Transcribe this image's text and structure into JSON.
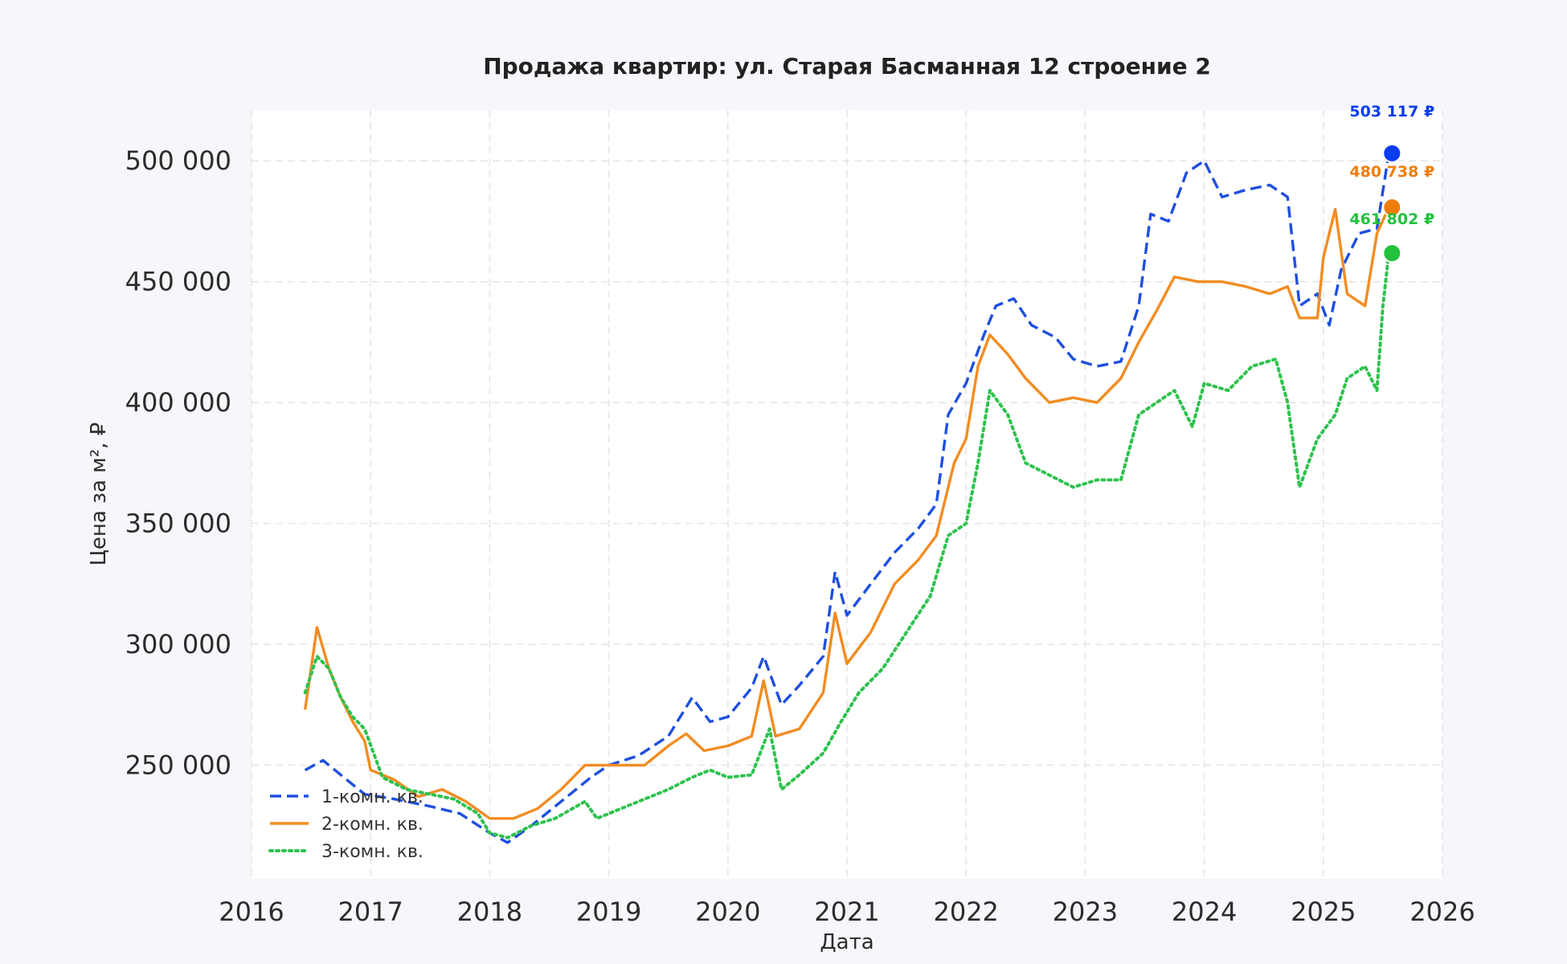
{
  "chart_data": {
    "type": "line",
    "title": "Продажа квартир: ул. Старая Басманная 12 строение 2",
    "xlabel": "Дата",
    "ylabel": "Цена за м², ₽",
    "xlim": [
      2016,
      2026
    ],
    "ylim": [
      203000,
      521000
    ],
    "x_ticks": [
      "2016",
      "2017",
      "2018",
      "2019",
      "2020",
      "2021",
      "2022",
      "2023",
      "2024",
      "2025",
      "2026"
    ],
    "y_ticks": [
      "250 000",
      "300 000",
      "350 000",
      "400 000",
      "450 000",
      "500 000"
    ],
    "grid": true,
    "legend_position": "lower-left",
    "series": [
      {
        "name": "1-комн. кв.",
        "color": "#1f4fe0",
        "style": "dashed",
        "end_label": "503 117 ₽",
        "end_marker_color": "#0a3cf0",
        "points": [
          [
            2016.45,
            248000
          ],
          [
            2016.6,
            252000
          ],
          [
            2016.75,
            246000
          ],
          [
            2016.95,
            238000
          ],
          [
            2017.2,
            236000
          ],
          [
            2017.5,
            233000
          ],
          [
            2017.75,
            230000
          ],
          [
            2018.0,
            222000
          ],
          [
            2018.15,
            218000
          ],
          [
            2018.35,
            225000
          ],
          [
            2018.6,
            235000
          ],
          [
            2018.85,
            245000
          ],
          [
            2019.0,
            250000
          ],
          [
            2019.25,
            254000
          ],
          [
            2019.5,
            262000
          ],
          [
            2019.7,
            278000
          ],
          [
            2019.85,
            268000
          ],
          [
            2020.0,
            270000
          ],
          [
            2020.2,
            282000
          ],
          [
            2020.3,
            295000
          ],
          [
            2020.45,
            275000
          ],
          [
            2020.6,
            283000
          ],
          [
            2020.8,
            295000
          ],
          [
            2020.9,
            330000
          ],
          [
            2021.0,
            312000
          ],
          [
            2021.2,
            325000
          ],
          [
            2021.4,
            338000
          ],
          [
            2021.6,
            348000
          ],
          [
            2021.75,
            358000
          ],
          [
            2021.85,
            395000
          ],
          [
            2022.0,
            408000
          ],
          [
            2022.15,
            428000
          ],
          [
            2022.25,
            440000
          ],
          [
            2022.4,
            443000
          ],
          [
            2022.55,
            432000
          ],
          [
            2022.75,
            427000
          ],
          [
            2022.9,
            418000
          ],
          [
            2023.1,
            415000
          ],
          [
            2023.3,
            417000
          ],
          [
            2023.45,
            440000
          ],
          [
            2023.55,
            478000
          ],
          [
            2023.7,
            475000
          ],
          [
            2023.85,
            495000
          ],
          [
            2024.0,
            500000
          ],
          [
            2024.15,
            485000
          ],
          [
            2024.35,
            488000
          ],
          [
            2024.55,
            490000
          ],
          [
            2024.7,
            485000
          ],
          [
            2024.8,
            440000
          ],
          [
            2024.95,
            445000
          ],
          [
            2025.05,
            432000
          ],
          [
            2025.15,
            455000
          ],
          [
            2025.3,
            470000
          ],
          [
            2025.45,
            472000
          ],
          [
            2025.55,
            503117
          ]
        ]
      },
      {
        "name": "2-комн. кв.",
        "color": "#f28c22",
        "style": "solid",
        "end_label": "480 738 ₽",
        "end_marker_color": "#f07d0a",
        "points": [
          [
            2016.45,
            273000
          ],
          [
            2016.5,
            290000
          ],
          [
            2016.55,
            307000
          ],
          [
            2016.65,
            290000
          ],
          [
            2016.75,
            278000
          ],
          [
            2016.85,
            268000
          ],
          [
            2016.95,
            260000
          ],
          [
            2017.0,
            248000
          ],
          [
            2017.2,
            244000
          ],
          [
            2017.4,
            237000
          ],
          [
            2017.6,
            240000
          ],
          [
            2017.8,
            235000
          ],
          [
            2018.0,
            228000
          ],
          [
            2018.2,
            228000
          ],
          [
            2018.4,
            232000
          ],
          [
            2018.6,
            240000
          ],
          [
            2018.8,
            250000
          ],
          [
            2019.0,
            250000
          ],
          [
            2019.3,
            250000
          ],
          [
            2019.5,
            258000
          ],
          [
            2019.65,
            263000
          ],
          [
            2019.8,
            256000
          ],
          [
            2020.0,
            258000
          ],
          [
            2020.2,
            262000
          ],
          [
            2020.3,
            285000
          ],
          [
            2020.4,
            262000
          ],
          [
            2020.6,
            265000
          ],
          [
            2020.8,
            280000
          ],
          [
            2020.9,
            313000
          ],
          [
            2021.0,
            292000
          ],
          [
            2021.2,
            305000
          ],
          [
            2021.4,
            325000
          ],
          [
            2021.6,
            335000
          ],
          [
            2021.75,
            345000
          ],
          [
            2021.9,
            375000
          ],
          [
            2022.0,
            385000
          ],
          [
            2022.1,
            415000
          ],
          [
            2022.2,
            428000
          ],
          [
            2022.35,
            420000
          ],
          [
            2022.5,
            410000
          ],
          [
            2022.7,
            400000
          ],
          [
            2022.9,
            402000
          ],
          [
            2023.1,
            400000
          ],
          [
            2023.3,
            410000
          ],
          [
            2023.45,
            425000
          ],
          [
            2023.6,
            438000
          ],
          [
            2023.75,
            452000
          ],
          [
            2023.95,
            450000
          ],
          [
            2024.15,
            450000
          ],
          [
            2024.35,
            448000
          ],
          [
            2024.55,
            445000
          ],
          [
            2024.7,
            448000
          ],
          [
            2024.8,
            435000
          ],
          [
            2024.95,
            435000
          ],
          [
            2025.0,
            460000
          ],
          [
            2025.1,
            480000
          ],
          [
            2025.2,
            445000
          ],
          [
            2025.35,
            440000
          ],
          [
            2025.45,
            470000
          ],
          [
            2025.55,
            480738
          ]
        ]
      },
      {
        "name": "3-комн. кв.",
        "color": "#2ec24e",
        "style": "dotted",
        "end_label": "461 802 ₽",
        "end_marker_color": "#22c23c",
        "points": [
          [
            2016.45,
            280000
          ],
          [
            2016.55,
            295000
          ],
          [
            2016.65,
            290000
          ],
          [
            2016.75,
            278000
          ],
          [
            2016.85,
            270000
          ],
          [
            2016.95,
            265000
          ],
          [
            2017.1,
            245000
          ],
          [
            2017.3,
            240000
          ],
          [
            2017.5,
            238000
          ],
          [
            2017.7,
            236000
          ],
          [
            2017.9,
            230000
          ],
          [
            2018.0,
            222000
          ],
          [
            2018.15,
            220000
          ],
          [
            2018.35,
            225000
          ],
          [
            2018.55,
            228000
          ],
          [
            2018.8,
            235000
          ],
          [
            2018.9,
            228000
          ],
          [
            2019.1,
            232000
          ],
          [
            2019.3,
            236000
          ],
          [
            2019.5,
            240000
          ],
          [
            2019.7,
            245000
          ],
          [
            2019.85,
            248000
          ],
          [
            2020.0,
            245000
          ],
          [
            2020.2,
            246000
          ],
          [
            2020.35,
            265000
          ],
          [
            2020.45,
            240000
          ],
          [
            2020.6,
            246000
          ],
          [
            2020.8,
            255000
          ],
          [
            2020.95,
            268000
          ],
          [
            2021.1,
            280000
          ],
          [
            2021.3,
            290000
          ],
          [
            2021.5,
            305000
          ],
          [
            2021.7,
            320000
          ],
          [
            2021.85,
            345000
          ],
          [
            2022.0,
            350000
          ],
          [
            2022.1,
            375000
          ],
          [
            2022.2,
            405000
          ],
          [
            2022.35,
            395000
          ],
          [
            2022.5,
            375000
          ],
          [
            2022.7,
            370000
          ],
          [
            2022.9,
            365000
          ],
          [
            2023.1,
            368000
          ],
          [
            2023.3,
            368000
          ],
          [
            2023.45,
            395000
          ],
          [
            2023.6,
            400000
          ],
          [
            2023.75,
            405000
          ],
          [
            2023.9,
            390000
          ],
          [
            2024.0,
            408000
          ],
          [
            2024.2,
            405000
          ],
          [
            2024.4,
            415000
          ],
          [
            2024.6,
            418000
          ],
          [
            2024.7,
            400000
          ],
          [
            2024.8,
            365000
          ],
          [
            2024.95,
            385000
          ],
          [
            2025.1,
            395000
          ],
          [
            2025.2,
            410000
          ],
          [
            2025.35,
            415000
          ],
          [
            2025.45,
            405000
          ],
          [
            2025.5,
            440000
          ],
          [
            2025.55,
            461802
          ]
        ]
      }
    ]
  }
}
